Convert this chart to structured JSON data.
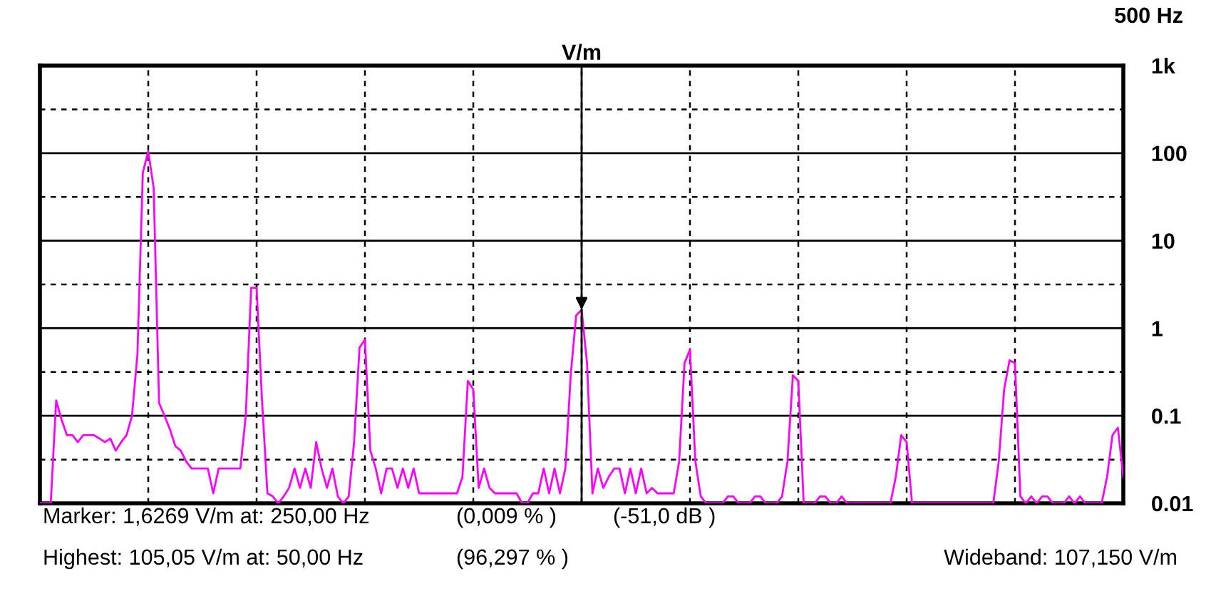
{
  "chart_data": {
    "type": "line",
    "xlabel": "500 Hz",
    "ylabel": "V/m",
    "log": "y",
    "categories": [
      null,
      null,
      null,
      null,
      null,
      null,
      null,
      null,
      null,
      null,
      null,
      null,
      null,
      null,
      null,
      null,
      null,
      null,
      null,
      null,
      null,
      null,
      null,
      null,
      null,
      null,
      null,
      null,
      null,
      null,
      null,
      null,
      null,
      null,
      null,
      null,
      null,
      null,
      null,
      null,
      null,
      null,
      null,
      null,
      null,
      null,
      null,
      null,
      null,
      null,
      null,
      null,
      null,
      null,
      null,
      null,
      null,
      null,
      null,
      null,
      null,
      null,
      null,
      null,
      null,
      null,
      null,
      null,
      null,
      null,
      null,
      null,
      null,
      null,
      null,
      null,
      null,
      null,
      null,
      null,
      null,
      null,
      null,
      null,
      null,
      null,
      null,
      null,
      null,
      null,
      null,
      null,
      null,
      null,
      null,
      null,
      null,
      null,
      null,
      null,
      null,
      null,
      null,
      null,
      null,
      null,
      null,
      null,
      null,
      null,
      null,
      null,
      null,
      null,
      null,
      null,
      null,
      null,
      null,
      null,
      null,
      null,
      null,
      null,
      null,
      null,
      null,
      null,
      null,
      null,
      null,
      null,
      null,
      null,
      null,
      null,
      null,
      null,
      null,
      null,
      null,
      null,
      null,
      null,
      null,
      null,
      null,
      null,
      null,
      null,
      null,
      null,
      null,
      null,
      null,
      null,
      null,
      null,
      null,
      null,
      null,
      null,
      null,
      null,
      null,
      null,
      null,
      null,
      null,
      null,
      null,
      null,
      null,
      null,
      null,
      null,
      null,
      null,
      null,
      null,
      null,
      null,
      null,
      null,
      null,
      null,
      null,
      null,
      null,
      null,
      null,
      null,
      null,
      null,
      null,
      null,
      null,
      null,
      null,
      null,
      null
    ],
    "ylim": [
      0.01,
      1000
    ],
    "yticks": [
      {
        "value": 0.01,
        "label": "0.01"
      },
      {
        "value": 0.0316,
        "label": null
      },
      {
        "value": 0.1,
        "label": "0.1"
      },
      {
        "value": 0.316,
        "label": null
      },
      {
        "value": 1,
        "label": "1"
      },
      {
        "value": 3.16,
        "label": null
      },
      {
        "value": 10,
        "label": "10"
      },
      {
        "value": 31.6,
        "label": null
      },
      {
        "value": 100,
        "label": "100"
      },
      {
        "value": 316,
        "label": null
      },
      {
        "value": 1000,
        "label": "1k"
      }
    ],
    "grid": true,
    "tick_labels": "y",
    "series": [
      {
        "color": "#ff00ff",
        "values": [
          0.01,
          0.01,
          0.01,
          0.15,
          0.09,
          0.06,
          0.06,
          0.05,
          0.06,
          0.06,
          0.06,
          0.055,
          0.05,
          0.055,
          0.04,
          0.05,
          0.06,
          0.1,
          0.5,
          60,
          105.05,
          40,
          0.14,
          0.1,
          0.07,
          0.045,
          0.04,
          0.03,
          0.025,
          0.025,
          0.025,
          0.025,
          0.013,
          0.025,
          0.025,
          0.025,
          0.025,
          0.025,
          0.1,
          2.9,
          2.9,
          0.15,
          0.013,
          0.012,
          0.01,
          0.012,
          0.015,
          0.025,
          0.015,
          0.025,
          0.015,
          0.05,
          0.025,
          0.015,
          0.025,
          0.012,
          0.01,
          0.012,
          0.05,
          0.6,
          0.74,
          0.04,
          0.025,
          0.013,
          0.025,
          0.025,
          0.015,
          0.025,
          0.015,
          0.025,
          0.013,
          0.013,
          0.013,
          0.013,
          0.013,
          0.013,
          0.013,
          0.013,
          0.02,
          0.25,
          0.2,
          0.015,
          0.025,
          0.015,
          0.013,
          0.013,
          0.013,
          0.013,
          0.013,
          0.01,
          0.01,
          0.013,
          0.013,
          0.025,
          0.013,
          0.025,
          0.013,
          0.025,
          0.3,
          1.4,
          1.6269,
          0.4,
          0.013,
          0.025,
          0.015,
          0.02,
          0.025,
          0.025,
          0.013,
          0.025,
          0.013,
          0.025,
          0.013,
          0.015,
          0.013,
          0.013,
          0.013,
          0.013,
          0.03,
          0.4,
          0.57,
          0.03,
          0.012,
          0.01,
          0.01,
          0.01,
          0.01,
          0.012,
          0.012,
          0.01,
          0.01,
          0.01,
          0.012,
          0.012,
          0.01,
          0.01,
          0.01,
          0.012,
          0.03,
          0.29,
          0.25,
          0.01,
          0.01,
          0.01,
          0.012,
          0.012,
          0.01,
          0.01,
          0.012,
          0.01,
          0.01,
          0.01,
          0.01,
          0.01,
          0.01,
          0.01,
          0.01,
          0.01,
          0.02,
          0.06,
          0.05,
          0.01,
          0.01,
          0.01,
          0.01,
          0.01,
          0.01,
          0.01,
          0.01,
          0.01,
          0.01,
          0.01,
          0.01,
          0.01,
          0.01,
          0.01,
          0.01,
          0.03,
          0.2,
          0.43,
          0.4,
          0.012,
          0.01,
          0.012,
          0.01,
          0.012,
          0.012,
          0.01,
          0.01,
          0.01,
          0.012,
          0.01,
          0.012,
          0.01,
          0.01,
          0.01,
          0.01,
          0.02,
          0.06,
          0.073,
          0.02
        ]
      }
    ],
    "annotations": [
      "Marker: 1,6269 V/m at: 250,00 Hz",
      "(0,009 % )",
      "(-51,0 dB )",
      "Highest: 105,05 V/m at: 50,00 Hz",
      "(96,297 % )",
      "Wideband: 107,150 V/m"
    ]
  }
}
